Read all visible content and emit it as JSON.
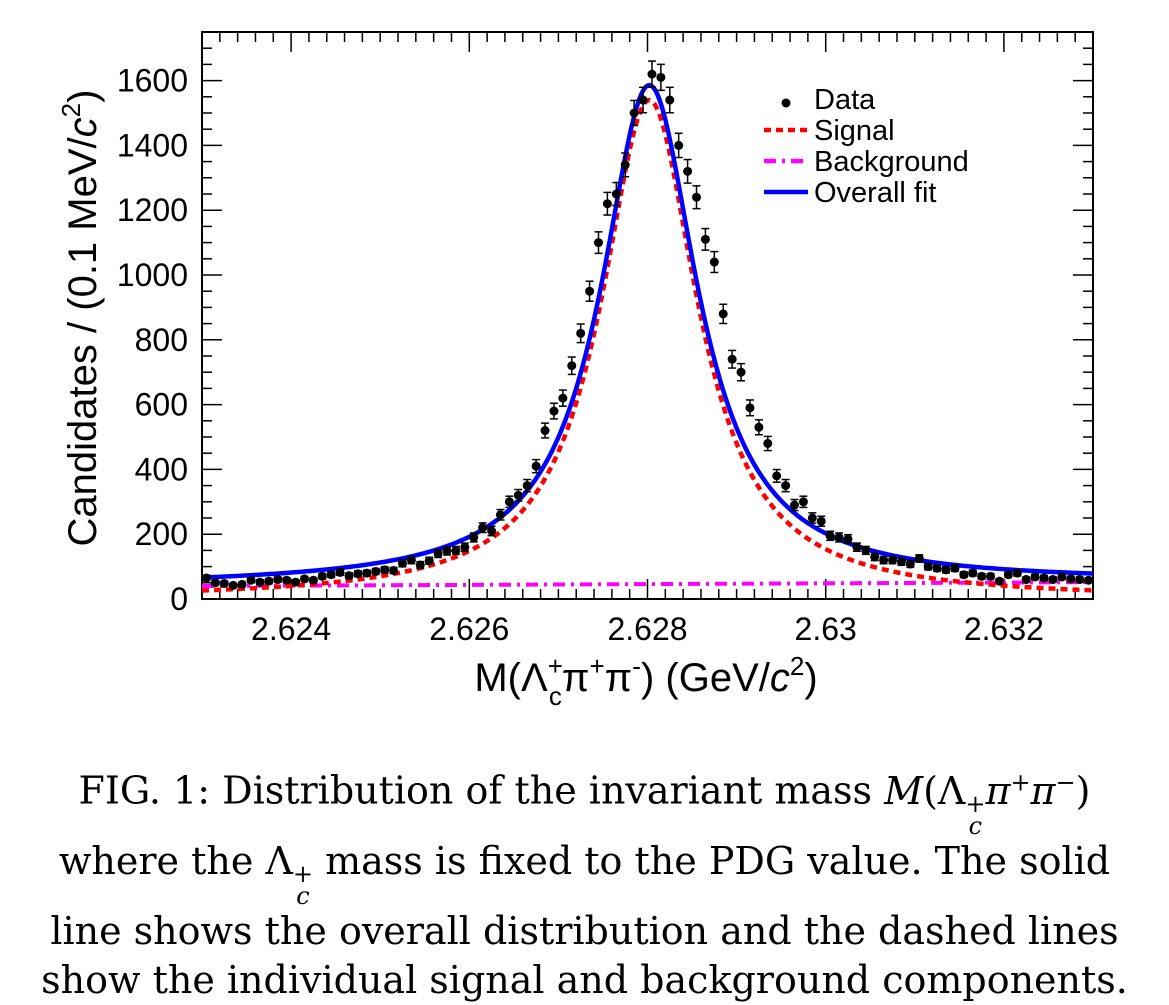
{
  "chart_data": {
    "type": "scatter",
    "xlabel": {
      "base": "M(Λ",
      "sub": "c",
      "sup": "+",
      "mid": "π",
      "sup2": "+",
      "mid2": "π",
      "sup3": "-",
      "tail": ") (GeV/",
      "unit_c": "c",
      "unit_pow": "2",
      "close": ")"
    },
    "ylabel": {
      "text": "Candidates / (0.1 MeV/",
      "unit_c": "c",
      "unit_pow": "2",
      "close": ")"
    },
    "xlim": [
      2.623,
      2.633
    ],
    "ylim": [
      0,
      1750
    ],
    "xticks": [
      2.624,
      2.626,
      2.628,
      2.63,
      2.632
    ],
    "xtick_labels": [
      "2.624",
      "2.626",
      "2.628",
      "2.63",
      "2.632"
    ],
    "yticks": [
      0,
      200,
      400,
      600,
      800,
      1000,
      1200,
      1400,
      1600
    ],
    "ytick_labels": [
      "0",
      "200",
      "400",
      "600",
      "800",
      "1000",
      "1200",
      "1400",
      "1600"
    ],
    "legend_position": "top-right",
    "legend": [
      {
        "label": "Data",
        "style": "marker",
        "color": "#000000"
      },
      {
        "label": "Signal",
        "style": "dashed",
        "color": "#ff0000"
      },
      {
        "label": "Background",
        "style": "dashdot",
        "color": "#ff00ff"
      },
      {
        "label": "Overall fit",
        "style": "solid",
        "color": "#0000ff"
      }
    ],
    "data": {
      "x": [
        2.62305,
        2.62315,
        2.62325,
        2.62335,
        2.62345,
        2.62355,
        2.62365,
        2.62375,
        2.62385,
        2.62395,
        2.62405,
        2.62415,
        2.62425,
        2.62435,
        2.62445,
        2.62455,
        2.62465,
        2.62475,
        2.62485,
        2.62495,
        2.62505,
        2.62515,
        2.62525,
        2.62535,
        2.62545,
        2.62555,
        2.62565,
        2.62575,
        2.62585,
        2.62595,
        2.62605,
        2.62615,
        2.62625,
        2.62635,
        2.62645,
        2.62655,
        2.62665,
        2.62675,
        2.62685,
        2.62695,
        2.62705,
        2.62715,
        2.62725,
        2.62735,
        2.62745,
        2.62755,
        2.62765,
        2.62775,
        2.62785,
        2.62795,
        2.62805,
        2.62815,
        2.62825,
        2.62835,
        2.62845,
        2.62855,
        2.62865,
        2.62875,
        2.62885,
        2.62895,
        2.62905,
        2.62915,
        2.62925,
        2.62935,
        2.62945,
        2.62955,
        2.62965,
        2.62975,
        2.62985,
        2.62995,
        2.63005,
        2.63015,
        2.63025,
        2.63035,
        2.63045,
        2.63055,
        2.63065,
        2.63075,
        2.63085,
        2.63095,
        2.63105,
        2.63115,
        2.63125,
        2.63135,
        2.63145,
        2.63155,
        2.63165,
        2.63175,
        2.63185,
        2.63195,
        2.63205,
        2.63215,
        2.63225,
        2.63235,
        2.63245,
        2.63255,
        2.63265,
        2.63275,
        2.63285,
        2.63295
      ],
      "y": [
        65,
        50,
        48,
        42,
        45,
        58,
        52,
        55,
        60,
        58,
        52,
        62,
        58,
        70,
        75,
        82,
        72,
        78,
        80,
        85,
        90,
        88,
        110,
        120,
        105,
        118,
        140,
        148,
        150,
        160,
        190,
        220,
        210,
        260,
        300,
        320,
        350,
        410,
        520,
        580,
        620,
        720,
        820,
        950,
        1100,
        1220,
        1250,
        1340,
        1500,
        1540,
        1620,
        1610,
        1540,
        1400,
        1320,
        1240,
        1110,
        1040,
        880,
        740,
        700,
        590,
        530,
        480,
        380,
        350,
        290,
        300,
        250,
        240,
        195,
        190,
        185,
        160,
        150,
        130,
        120,
        120,
        115,
        108,
        125,
        100,
        95,
        90,
        95,
        75,
        80,
        70,
        70,
        55,
        75,
        80,
        60,
        68,
        65,
        60,
        68,
        62,
        60,
        58
      ]
    },
    "fit_model": {
      "peak_mass": 2.62802,
      "signal_amplitude": 1540,
      "signal_hwhm_gev": 0.00066,
      "background_start": 40,
      "background_end": 52
    }
  },
  "caption": {
    "line1": "FIG. 1: Distribution of the invariant mass",
    "line1_math": {
      "M": "M",
      "open": "(Λ",
      "sup": "+",
      "sub": "c",
      "pi1": "π",
      "sup1": "+",
      "pi2": "π",
      "sup2": "−",
      "close": ")"
    },
    "line2_pre": "where the",
    "line2_math": {
      "L": "Λ",
      "sup": "+",
      "sub": "c"
    },
    "line2_post": "mass is fixed to the PDG value. The solid",
    "line3": "line shows the overall distribution and the dashed lines",
    "line4": "show the individual signal and background components."
  }
}
